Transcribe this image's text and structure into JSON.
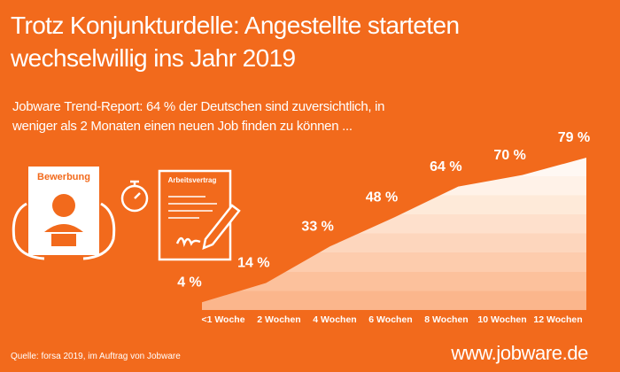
{
  "chart_data": {
    "type": "area",
    "title": "Trotz Konjunkturdelle: Angestellte starteten wechselwillig ins Jahr 2019",
    "subtitle": "Jobware Trend-Report: 64 % der Deutschen sind zuversichtlich, in weniger als 2 Monaten einen neuen Job finden zu können ...",
    "categories": [
      "<1 Woche",
      "2 Wochen",
      "4 Wochen",
      "6 Wochen",
      "8 Wochen",
      "10 Wochen",
      "12 Wochen"
    ],
    "values": [
      4,
      14,
      33,
      48,
      64,
      70,
      79
    ],
    "value_labels": [
      "4 %",
      "14 %",
      "33 %",
      "48 %",
      "64 %",
      "70 %",
      "79 %"
    ],
    "color": "#ffffff",
    "source": "Quelle: forsa 2019, im Auftrag von Jobware"
  },
  "illustration_labels": {
    "application": "Bewerbung",
    "contract": "Arbeitsvertrag"
  },
  "footer": {
    "url": "www.jobware.de"
  }
}
